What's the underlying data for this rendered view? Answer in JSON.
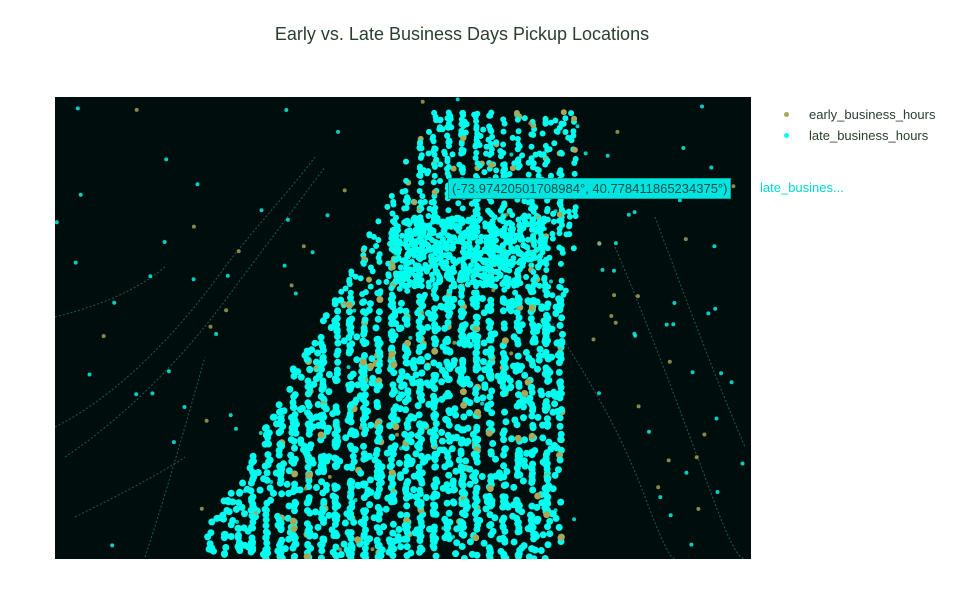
{
  "title": "Early vs. Late Business Days Pickup Locations",
  "colors": {
    "background": "#ffffff",
    "map_background": "#000d0d",
    "early": "#a8a85a",
    "late": "#00ffef"
  },
  "legend": [
    {
      "name": "early_business_hours",
      "color": "#a8a85a"
    },
    {
      "name": "late_business_hours",
      "color": "#00ffef"
    }
  ],
  "hover": {
    "coords": "(-73.97420501708984°, 40.778411865234375°)",
    "trace": "late_busines..."
  },
  "map_style": "dark"
}
